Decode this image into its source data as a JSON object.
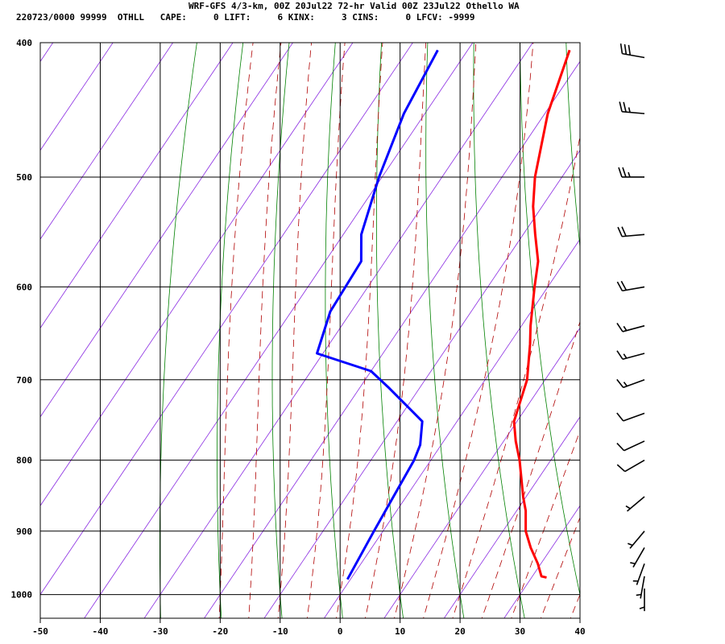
{
  "header": {
    "title": "WRF-GFS 4/3-km, 00Z 20Jul22 72-hr Valid 00Z 23Jul22 Othello WA",
    "stats": "220723/0000 99999  OTHLL   CAPE:     0 LIFT:     6 KINX:     3 CINS:     0 LFCV: -9999"
  },
  "chart_data": {
    "type": "line",
    "subtype": "skew-T log-P sounding",
    "x_axis": {
      "label": "",
      "range": [
        -50,
        40
      ],
      "ticks": [
        "-50",
        "-40",
        "-30",
        "-20",
        "-10",
        "0",
        "10",
        "20",
        "30",
        "40"
      ]
    },
    "y_axis": {
      "label": "",
      "scale": "log",
      "range": [
        1040,
        400
      ],
      "ticks": [
        "400",
        "500",
        "600",
        "700",
        "800",
        "900",
        "1000"
      ],
      "tick_values": [
        400,
        500,
        600,
        700,
        800,
        900,
        1000
      ]
    },
    "grid": true,
    "series": [
      {
        "color": "#ff0000",
        "points": [
          {
            "p": 972,
            "t": 32.5
          },
          {
            "p": 970,
            "t": 31.5
          },
          {
            "p": 950,
            "t": 29.5
          },
          {
            "p": 925,
            "t": 26.5
          },
          {
            "p": 900,
            "t": 23.8
          },
          {
            "p": 870,
            "t": 21.5
          },
          {
            "p": 850,
            "t": 19.5
          },
          {
            "p": 800,
            "t": 14.8
          },
          {
            "p": 775,
            "t": 12.0
          },
          {
            "p": 750,
            "t": 9.5
          },
          {
            "p": 700,
            "t": 7.0
          },
          {
            "p": 660,
            "t": 3.5
          },
          {
            "p": 640,
            "t": 1.5
          },
          {
            "p": 600,
            "t": -2.2
          },
          {
            "p": 575,
            "t": -4.5
          },
          {
            "p": 550,
            "t": -8.0
          },
          {
            "p": 525,
            "t": -11.5
          },
          {
            "p": 500,
            "t": -14.5
          },
          {
            "p": 450,
            "t": -19.5
          },
          {
            "p": 405,
            "t": -23.0
          }
        ]
      },
      {
        "color": "#0000ff",
        "points": [
          {
            "p": 975,
            "t": -0.5
          },
          {
            "p": 900,
            "t": -1.5
          },
          {
            "p": 800,
            "t": -2.8
          },
          {
            "p": 780,
            "t": -3.5
          },
          {
            "p": 750,
            "t": -5.8
          },
          {
            "p": 710,
            "t": -15.0
          },
          {
            "p": 690,
            "t": -20.0
          },
          {
            "p": 670,
            "t": -31.0
          },
          {
            "p": 625,
            "t": -33.5
          },
          {
            "p": 575,
            "t": -34.0
          },
          {
            "p": 550,
            "t": -37.0
          },
          {
            "p": 500,
            "t": -40.5
          },
          {
            "p": 450,
            "t": -43.5
          },
          {
            "p": 405,
            "t": -45.0
          }
        ]
      }
    ],
    "isotherm_color": "#8a2be2",
    "isotherms": [
      -130,
      -120,
      -110,
      -100,
      -90,
      -80,
      -70,
      -60,
      -50,
      -40,
      -30,
      -20,
      -10,
      0,
      10,
      20,
      30
    ],
    "dry_adiabat_color": "#008000",
    "dry_adiabats_theta_c": [
      -30,
      -20,
      -10,
      0,
      10,
      20,
      30,
      40,
      50,
      60,
      70,
      80,
      90,
      100
    ],
    "moist_adiabat_color": "#b00000",
    "moist_adiabats_c": [
      -20,
      -15,
      -10,
      -5,
      0,
      5,
      10,
      15,
      20,
      25,
      30,
      35,
      40
    ],
    "wind_barbs": [
      {
        "p": 410,
        "dir": 280,
        "spd": 30
      },
      {
        "p": 450,
        "dir": 275,
        "spd": 25
      },
      {
        "p": 500,
        "dir": 270,
        "spd": 25
      },
      {
        "p": 550,
        "dir": 265,
        "spd": 20
      },
      {
        "p": 600,
        "dir": 260,
        "spd": 20
      },
      {
        "p": 640,
        "dir": 255,
        "spd": 15
      },
      {
        "p": 670,
        "dir": 255,
        "spd": 15
      },
      {
        "p": 700,
        "dir": 250,
        "spd": 15
      },
      {
        "p": 740,
        "dir": 250,
        "spd": 10
      },
      {
        "p": 775,
        "dir": 245,
        "spd": 10
      },
      {
        "p": 800,
        "dir": 240,
        "spd": 10
      },
      {
        "p": 850,
        "dir": 230,
        "spd": 5
      },
      {
        "p": 900,
        "dir": 220,
        "spd": 5
      },
      {
        "p": 925,
        "dir": 210,
        "spd": 5
      },
      {
        "p": 950,
        "dir": 200,
        "spd": 5
      },
      {
        "p": 970,
        "dir": 190,
        "spd": 5
      },
      {
        "p": 990,
        "dir": 180,
        "spd": 5
      }
    ]
  }
}
